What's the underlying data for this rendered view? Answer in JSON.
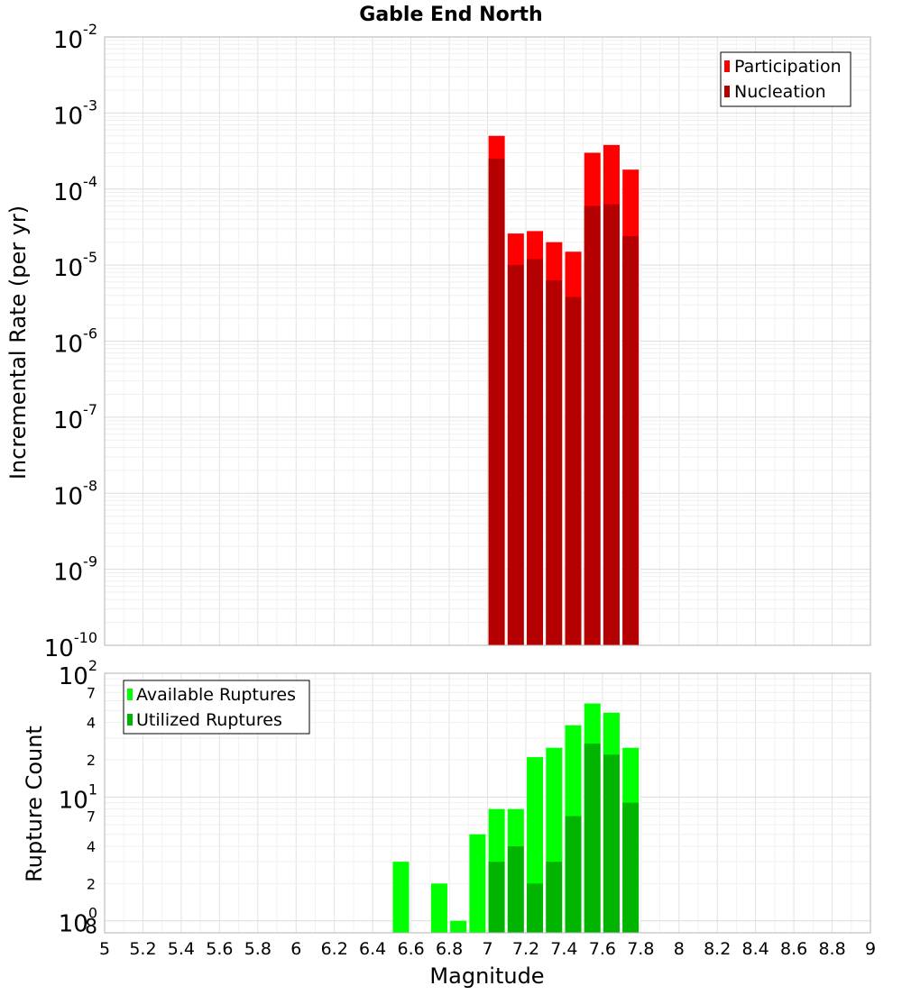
{
  "title": "Gable End North",
  "chart_data": [
    {
      "type": "bar",
      "ylabel": "Incremental Rate (per yr)",
      "yscale": "log",
      "ylim": [
        1e-10,
        0.01
      ],
      "xlim": [
        5,
        9
      ],
      "grid": true,
      "legend_position": "top-right",
      "y_tick_labels": [
        {
          "base": "10",
          "exp": "-10"
        },
        {
          "base": "10",
          "exp": "-9"
        },
        {
          "base": "10",
          "exp": "-8"
        },
        {
          "base": "10",
          "exp": "-7"
        },
        {
          "base": "10",
          "exp": "-6"
        },
        {
          "base": "10",
          "exp": "-5"
        },
        {
          "base": "10",
          "exp": "-4"
        },
        {
          "base": "10",
          "exp": "-3"
        },
        {
          "base": "10",
          "exp": "-2"
        }
      ],
      "x": [
        7.05,
        7.15,
        7.25,
        7.35,
        7.45,
        7.55,
        7.65,
        7.75
      ],
      "series": [
        {
          "name": "Participation",
          "color": "#ff0000",
          "values": [
            0.0005,
            2.6e-05,
            2.8e-05,
            2e-05,
            1.5e-05,
            0.0003,
            0.00038,
            0.00018
          ]
        },
        {
          "name": "Nucleation",
          "color": "#b40000",
          "values": [
            0.00025,
            1e-05,
            1.2e-05,
            6.3e-06,
            3.8e-06,
            6e-05,
            6.3e-05,
            2.4e-05
          ]
        }
      ]
    },
    {
      "type": "bar",
      "ylabel": "Rupture Count",
      "yscale": "log",
      "ylim": [
        0.8,
        100
      ],
      "grid": true,
      "legend_position": "top-left",
      "y_tick_labels": [
        {
          "label": "10",
          "exp": "0",
          "extra": "8"
        },
        {
          "label": "2"
        },
        {
          "label": "4"
        },
        {
          "label": "7"
        },
        {
          "label": "10",
          "exp": "1"
        },
        {
          "label": "2"
        },
        {
          "label": "4"
        },
        {
          "label": "7"
        },
        {
          "label": "10",
          "exp": "2"
        }
      ],
      "y_tick_values": [
        1,
        2,
        4,
        7,
        10,
        20,
        40,
        70,
        100
      ],
      "x": [
        6.55,
        6.75,
        6.85,
        6.95,
        7.05,
        7.15,
        7.25,
        7.35,
        7.45,
        7.55,
        7.65,
        7.75
      ],
      "series": [
        {
          "name": "Available Ruptures",
          "color": "#00ff00",
          "values": [
            3,
            2,
            1,
            5,
            8,
            8,
            21,
            25,
            38,
            57,
            48,
            25
          ]
        },
        {
          "name": "Utilized Ruptures",
          "color": "#00b400",
          "values": [
            0,
            0,
            0,
            0,
            3,
            4,
            2,
            3,
            7,
            27,
            22,
            9
          ]
        }
      ],
      "xlabel": "Magnitude",
      "x_tick_labels": [
        "5",
        "5.2",
        "5.4",
        "5.6",
        "5.8",
        "6",
        "6.2",
        "6.4",
        "6.6",
        "6.8",
        "7",
        "7.2",
        "7.4",
        "7.6",
        "7.8",
        "8",
        "8.2",
        "8.4",
        "8.6",
        "8.8",
        "9"
      ]
    }
  ]
}
